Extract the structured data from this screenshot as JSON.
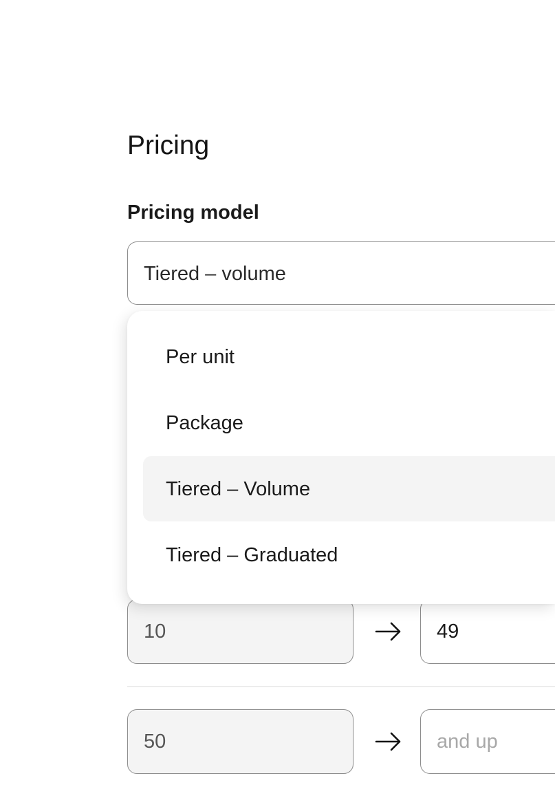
{
  "section_title": "Pricing",
  "pricing_model": {
    "label": "Pricing model",
    "selected_value": "Tiered – volume",
    "options": [
      "Per unit",
      "Package",
      "Tiered – Volume",
      "Tiered – Graduated"
    ],
    "highlighted_option": "Tiered – Volume"
  },
  "tiers": [
    {
      "from": "10",
      "to": "49",
      "to_placeholder": ""
    },
    {
      "from": "50",
      "to": "",
      "to_placeholder": "and up"
    }
  ],
  "icons": {
    "arrow": "arrow-right-icon"
  }
}
